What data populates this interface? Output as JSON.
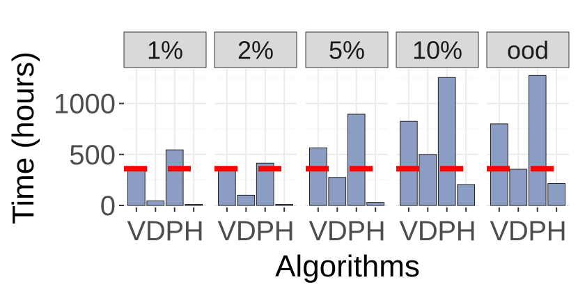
{
  "chart_data": {
    "type": "bar",
    "xlabel": "Algorithms",
    "ylabel": "Time (hours)",
    "ylim": [
      0,
      1300
    ],
    "yticks": [
      0,
      500,
      1000
    ],
    "x_tick_labels": [
      "V",
      "D",
      "P",
      "H"
    ],
    "reference_value": 360,
    "colors": {
      "bar": "#8b9dc3",
      "reference": "#ff0000"
    },
    "facets": [
      {
        "label": "1%",
        "values": [
          360,
          45,
          545,
          10
        ]
      },
      {
        "label": "2%",
        "values": [
          360,
          100,
          415,
          10
        ]
      },
      {
        "label": "5%",
        "values": [
          565,
          275,
          895,
          30
        ]
      },
      {
        "label": "10%",
        "values": [
          825,
          500,
          1255,
          205
        ]
      },
      {
        "label": "ood",
        "values": [
          800,
          355,
          1275,
          215
        ]
      }
    ]
  }
}
